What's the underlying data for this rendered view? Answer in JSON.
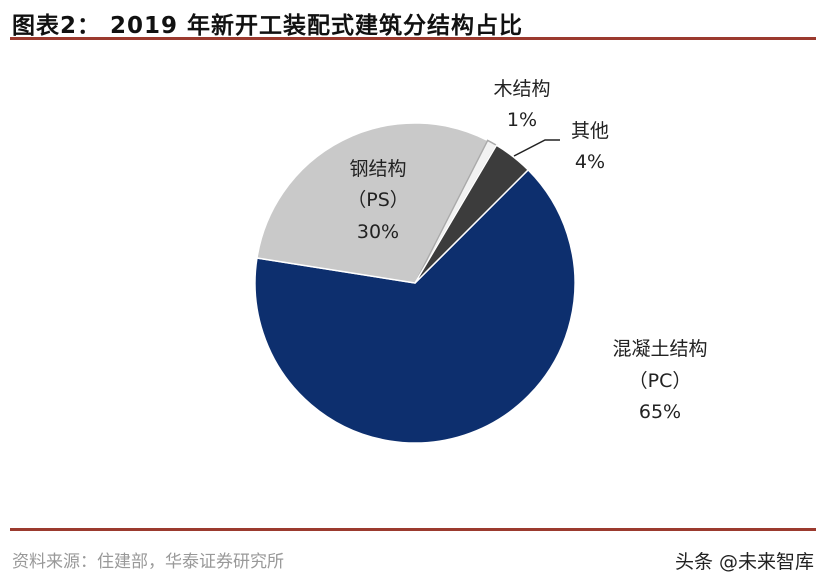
{
  "title": "图表2：  2019 年新开工装配式建筑分结构占比",
  "source": "资料来源：住建部，华泰证券研究所",
  "watermark": "头条 @未来智库",
  "chart_data": {
    "type": "pie",
    "title": "图表2：  2019 年新开工装配式建筑分结构占比",
    "slices": [
      {
        "name": "混凝土结构",
        "sub": "（PC）",
        "value": 65,
        "label": "65%",
        "color": "#0d2f6e"
      },
      {
        "name": "钢结构",
        "sub": "（PS）",
        "value": 30,
        "label": "30%",
        "color": "#c9c9c9"
      },
      {
        "name": "木结构",
        "sub": "",
        "value": 1,
        "label": "1%",
        "color": "#f2f2f2"
      },
      {
        "name": "其他",
        "sub": "",
        "value": 4,
        "label": "4%",
        "color": "#3c3c3c"
      }
    ]
  }
}
